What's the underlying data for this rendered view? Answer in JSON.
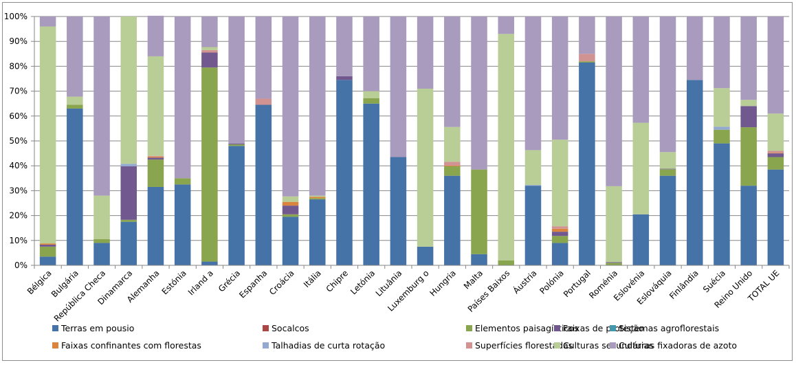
{
  "chart_data": {
    "type": "bar",
    "stacked": true,
    "percent_stacked": true,
    "title": "",
    "xlabel": "",
    "ylabel": "",
    "ylim": [
      0,
      100
    ],
    "yticks": [
      "0%",
      "10%",
      "20%",
      "30%",
      "40%",
      "50%",
      "60%",
      "70%",
      "80%",
      "90%",
      "100%"
    ],
    "grid": true,
    "legend_position": "bottom",
    "categories": [
      "Bélgica",
      "Bulgária",
      "República Checa",
      "Dinamarca",
      "Alemanha",
      "Estónia",
      "Irland a",
      "Grécia",
      "Espanha",
      "Croácia",
      "Itália",
      "Chipre",
      "Letónia",
      "Lituânia",
      "Luxemburg o",
      "Hungria",
      "Malta",
      "Países Baixos",
      "Áustria",
      "Polónia",
      "Portugal",
      "Roménia",
      "Eslovénia",
      "Eslováquia",
      "Finlândia",
      "Suécia",
      "Reino Unido",
      "TOTAL UE"
    ],
    "series": [
      {
        "name": "Terras em pousio",
        "color": "#4572A7",
        "values": [
          3.5,
          63,
          9,
          17.5,
          31.5,
          32.5,
          1.5,
          48,
          64.5,
          19.5,
          26.5,
          74.5,
          65,
          43.5,
          7.5,
          36,
          4.5,
          0,
          32,
          9,
          81.5,
          0,
          20.5,
          36,
          74.5,
          49,
          32,
          38.5
        ]
      },
      {
        "name": "Socalcos",
        "color": "#AA4643",
        "values": [
          0,
          0,
          0,
          0,
          0,
          0,
          0,
          0,
          0,
          0,
          0,
          0,
          0,
          0,
          0,
          0,
          0,
          0,
          0,
          0,
          0,
          0,
          0,
          0,
          0,
          0,
          0,
          0
        ]
      },
      {
        "name": "Elementos paisagísticos",
        "color": "#89A54E",
        "values": [
          4,
          1.5,
          1.5,
          0.8,
          11,
          2.5,
          78,
          0.6,
          0,
          1,
          0.5,
          0,
          2.2,
          0,
          0,
          3.8,
          34,
          2,
          0,
          2.8,
          0.5,
          1,
          0,
          2.6,
          0,
          5.5,
          23.5,
          5
        ]
      },
      {
        "name": "Faixas de proteção",
        "color": "#71588F",
        "values": [
          0.8,
          0,
          0,
          21.5,
          0.8,
          0,
          6,
          0.3,
          0,
          3.5,
          0,
          1.5,
          0,
          0,
          0,
          0,
          0,
          0,
          0,
          1.7,
          0,
          0.3,
          0,
          0.2,
          0,
          0,
          8.5,
          1.5
        ]
      },
      {
        "name": "Sistemas agroflorestais",
        "color": "#4198AF",
        "values": [
          0,
          0,
          0,
          0,
          0,
          0,
          0,
          0,
          0,
          0,
          0,
          0,
          0,
          0,
          0,
          0,
          0,
          0,
          0,
          0,
          0,
          0,
          0,
          0,
          0,
          0,
          0,
          0
        ]
      },
      {
        "name": "Faixas confinantes com florestas",
        "color": "#DB843D",
        "values": [
          0.5,
          0,
          0,
          0,
          0.4,
          0,
          0,
          0,
          0,
          1.5,
          0.5,
          0,
          0,
          0,
          0,
          0.3,
          0,
          0,
          0,
          1.2,
          0,
          0,
          0,
          0,
          0,
          0,
          0,
          0.2
        ]
      },
      {
        "name": "Talhadias de curta rotação",
        "color": "#93A9CF",
        "values": [
          0,
          0,
          0,
          1,
          0,
          0,
          0,
          0,
          0,
          0,
          0,
          0,
          0,
          0,
          0,
          0,
          0,
          0,
          0.3,
          0,
          0,
          0,
          0,
          0,
          0,
          1.2,
          0,
          0
        ]
      },
      {
        "name": "Superfícies florestadas",
        "color": "#D19392",
        "values": [
          0,
          0,
          0,
          0,
          0.3,
          0,
          1,
          0,
          2.5,
          0,
          0,
          0,
          0,
          0,
          0,
          1.5,
          0,
          0,
          0,
          1,
          3,
          0,
          0,
          0,
          0,
          0,
          0,
          0.8
        ]
      },
      {
        "name": "Culturas secundárias",
        "color": "#B9CD96",
        "values": [
          87.2,
          3.3,
          17.5,
          59.2,
          40,
          0,
          1.2,
          0,
          0,
          2.2,
          0.5,
          0,
          2.8,
          0,
          63.5,
          14,
          0,
          91,
          14,
          34.8,
          0,
          30.5,
          36.8,
          6.7,
          0,
          15.5,
          2.5,
          15
        ]
      },
      {
        "name": "Culturas fixadoras de azoto",
        "color": "#A99BBD",
        "values": [
          4,
          32.2,
          72,
          0,
          16.3,
          65,
          12.3,
          51.1,
          33,
          72.3,
          72,
          24,
          30,
          56.5,
          29,
          44.4,
          61.5,
          7,
          53.7,
          49.5,
          15,
          68.2,
          42.7,
          54.5,
          25.5,
          28.8,
          33.5,
          39
        ]
      }
    ]
  }
}
